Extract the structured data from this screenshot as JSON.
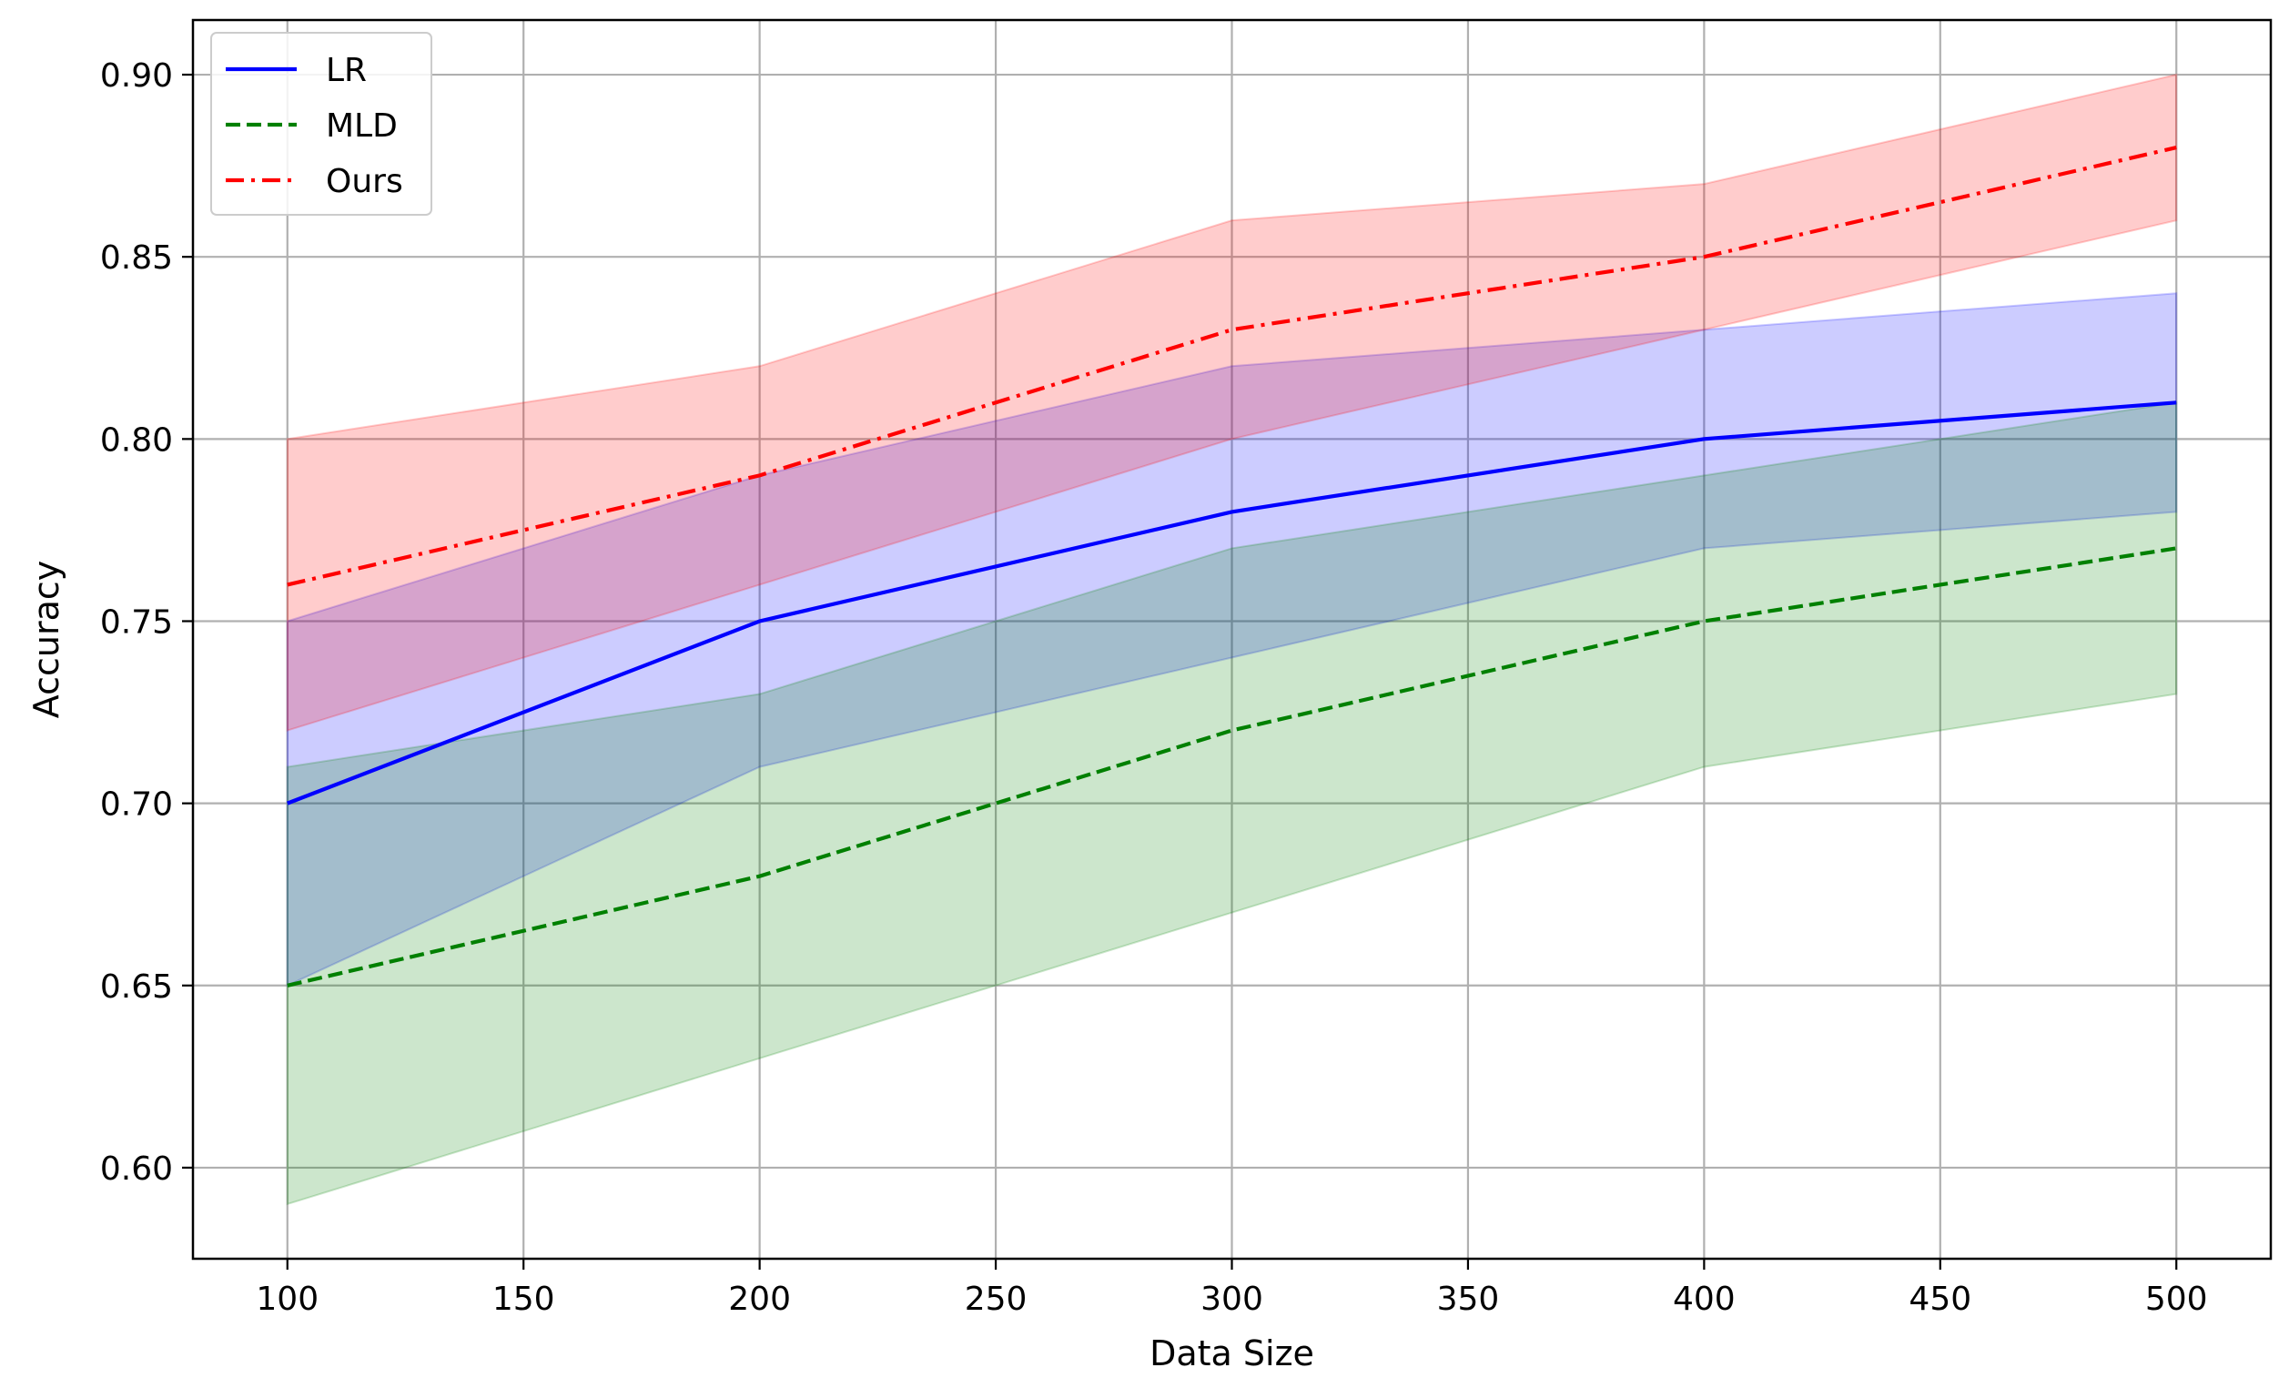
{
  "chart_data": {
    "type": "line",
    "title": "",
    "xlabel": "Data Size",
    "ylabel": "Accuracy",
    "xlim": [
      80,
      520
    ],
    "ylim": [
      0.575,
      0.915
    ],
    "grid": true,
    "legend_position": "top-left",
    "x_ticks": [
      100,
      150,
      200,
      250,
      300,
      350,
      400,
      450,
      500
    ],
    "x_tick_labels": [
      "100",
      "150",
      "200",
      "250",
      "300",
      "350",
      "400",
      "450",
      "500"
    ],
    "y_ticks": [
      0.6,
      0.65,
      0.7,
      0.75,
      0.8,
      0.85,
      0.9
    ],
    "y_tick_labels": [
      "0.60",
      "0.65",
      "0.70",
      "0.75",
      "0.80",
      "0.85",
      "0.90"
    ],
    "x": [
      100,
      200,
      300,
      400,
      500
    ],
    "series": [
      {
        "name": "LR",
        "color": "#0000ff",
        "line_style": "solid",
        "values": [
          0.7,
          0.75,
          0.78,
          0.8,
          0.81
        ],
        "lower": [
          0.65,
          0.71,
          0.74,
          0.77,
          0.78
        ],
        "upper": [
          0.75,
          0.79,
          0.82,
          0.83,
          0.84
        ]
      },
      {
        "name": "MLD",
        "color": "#008000",
        "line_style": "dashed",
        "values": [
          0.65,
          0.68,
          0.72,
          0.75,
          0.77
        ],
        "lower": [
          0.59,
          0.63,
          0.67,
          0.71,
          0.73
        ],
        "upper": [
          0.71,
          0.73,
          0.77,
          0.79,
          0.81
        ]
      },
      {
        "name": "Ours",
        "color": "#ff0000",
        "line_style": "dashdot",
        "values": [
          0.76,
          0.79,
          0.83,
          0.85,
          0.88
        ],
        "lower": [
          0.72,
          0.76,
          0.8,
          0.83,
          0.86
        ],
        "upper": [
          0.8,
          0.82,
          0.86,
          0.87,
          0.9
        ]
      }
    ]
  }
}
